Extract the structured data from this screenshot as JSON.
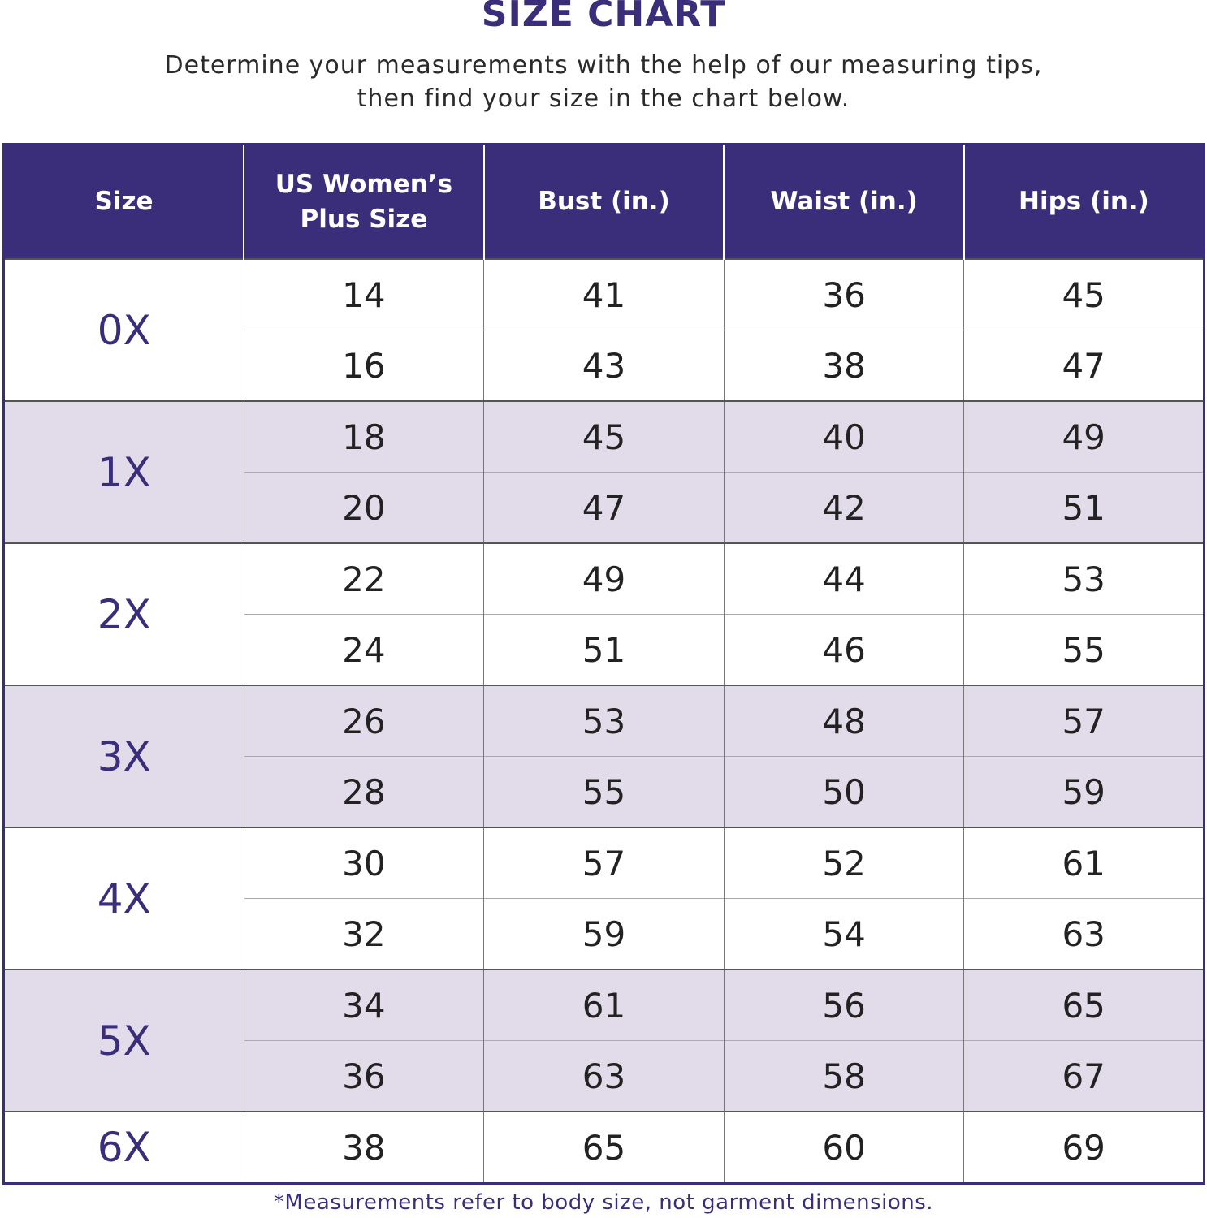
{
  "title": "SIZE CHART",
  "subtitle_line1": "Determine your measurements with the help of our measuring tips,",
  "subtitle_line2": "then find your size in the chart below.",
  "colors": {
    "header": "#3a2d7a",
    "shade": "#e2dcea"
  },
  "headers": [
    "Size",
    "US Women’s Plus Size",
    "Bust (in.)",
    "Waist (in.)",
    "Hips (in.)"
  ],
  "groups": [
    {
      "size": "0X",
      "rows": [
        [
          "14",
          "41",
          "36",
          "45"
        ],
        [
          "16",
          "43",
          "38",
          "47"
        ]
      ]
    },
    {
      "size": "1X",
      "rows": [
        [
          "18",
          "45",
          "40",
          "49"
        ],
        [
          "20",
          "47",
          "42",
          "51"
        ]
      ]
    },
    {
      "size": "2X",
      "rows": [
        [
          "22",
          "49",
          "44",
          "53"
        ],
        [
          "24",
          "51",
          "46",
          "55"
        ]
      ]
    },
    {
      "size": "3X",
      "rows": [
        [
          "26",
          "53",
          "48",
          "57"
        ],
        [
          "28",
          "55",
          "50",
          "59"
        ]
      ]
    },
    {
      "size": "4X",
      "rows": [
        [
          "30",
          "57",
          "52",
          "61"
        ],
        [
          "32",
          "59",
          "54",
          "63"
        ]
      ]
    },
    {
      "size": "5X",
      "rows": [
        [
          "34",
          "61",
          "56",
          "65"
        ],
        [
          "36",
          "63",
          "58",
          "67"
        ]
      ]
    },
    {
      "size": "6X",
      "rows": [
        [
          "38",
          "65",
          "60",
          "69"
        ]
      ]
    }
  ],
  "footnote": "*Measurements refer to body size, not garment dimensions."
}
